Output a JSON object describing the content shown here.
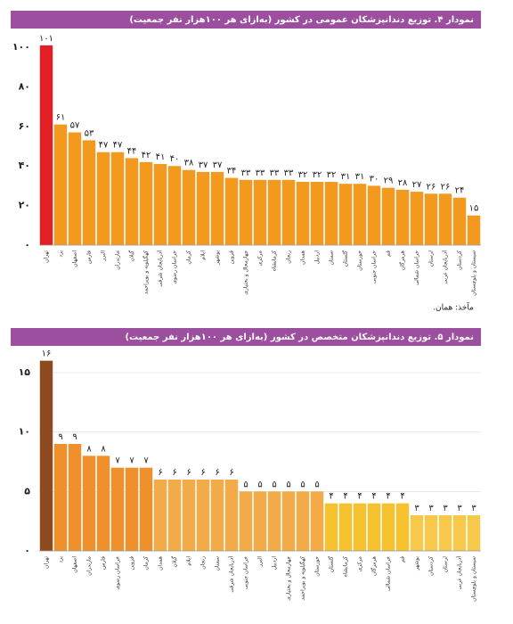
{
  "chart_data": [
    {
      "type": "bar",
      "title": "نمودار ۴. توزیع دندانپزشکان عمومی در کشور (به‌ازای هر ۱۰۰هزار نفر جمعیت)",
      "categories": [
        "تهران",
        "یزد",
        "اصفهان",
        "فارس",
        "البرز",
        "مازندران",
        "گیلان",
        "کهگیلویه و بویراحمد",
        "آذربایجان شرقی",
        "خراسان رضوی",
        "کرمان",
        "ایلام",
        "بوشهر",
        "قزوین",
        "چهارمحال و بختیاری",
        "مرکزی",
        "کرمانشاه",
        "زنجان",
        "همدان",
        "اردبیل",
        "سمنان",
        "گلستان",
        "خوزستان",
        "خراسان جنوبی",
        "قم",
        "هرمزگان",
        "خراسان شمالی",
        "لرستان",
        "آذربایجان غربی",
        "کردستان",
        "سیستان و بلوچستان"
      ],
      "values": [
        101,
        61,
        57,
        53,
        47,
        47,
        44,
        42,
        41,
        40,
        38,
        37,
        37,
        34,
        33,
        33,
        33,
        33,
        32,
        32,
        32,
        31,
        31,
        30,
        29,
        28,
        27,
        26,
        26,
        24,
        15
      ],
      "value_labels": [
        "۱۰۱",
        "۶۱",
        "۵۷",
        "۵۳",
        "۴۷",
        "۴۷",
        "۴۴",
        "۴۲",
        "۴۱",
        "۴۰",
        "۳۸",
        "۳۷",
        "۳۷",
        "۳۴",
        "۳۳",
        "۳۳",
        "۳۳",
        "۳۳",
        "۳۲",
        "۳۲",
        "۳۲",
        "۳۱",
        "۳۱",
        "۳۰",
        "۲۹",
        "۲۸",
        "۲۷",
        "۲۶",
        "۲۶",
        "۲۴",
        "۱۵"
      ],
      "colors": [
        "#e31e24",
        "#f39a1e",
        "#f39a1e",
        "#f39a1e",
        "#f39a1e",
        "#f39a1e",
        "#f39a1e",
        "#f39a1e",
        "#f39a1e",
        "#f39a1e",
        "#f39a1e",
        "#f39a1e",
        "#f39a1e",
        "#f39a1e",
        "#f39a1e",
        "#f39a1e",
        "#f39a1e",
        "#f39a1e",
        "#f39a1e",
        "#f39a1e",
        "#f39a1e",
        "#f39a1e",
        "#f39a1e",
        "#f39a1e",
        "#f39a1e",
        "#f39a1e",
        "#f39a1e",
        "#f39a1e",
        "#f39a1e",
        "#f39a1e",
        "#f39a1e"
      ],
      "ylim": [
        0,
        105
      ],
      "yticks": [
        {
          "value": 0,
          "label": "۰"
        },
        {
          "value": 20,
          "label": "۲۰"
        },
        {
          "value": 40,
          "label": "۴۰"
        },
        {
          "value": 60,
          "label": "۶۰"
        },
        {
          "value": 80,
          "label": "۸۰"
        },
        {
          "value": 100,
          "label": "۱۰۰"
        }
      ],
      "grid": false,
      "source": "مآخذ: همان."
    },
    {
      "type": "bar",
      "title": "نمودار ۵. توزیع دندانپزشکان متخصص در کشور (به‌ازای هر ۱۰۰هزار نفر جمعیت)",
      "categories": [
        "تهران",
        "یزد",
        "اصفهان",
        "مازندران",
        "فارس",
        "خراسان رضوی",
        "قزوین",
        "کرمان",
        "همدان",
        "گیلان",
        "ایلام",
        "زنجان",
        "سمنان",
        "آذربایجان شرقی",
        "خراسان جنوبی",
        "البرز",
        "اردبیل",
        "چهارمحال و بختیاری",
        "کهگیلویه و بویراحمد",
        "خوزستان",
        "گلستان",
        "کرمانشاه",
        "مرکزی",
        "هرمزگان",
        "خراسان شمالی",
        "قم",
        "بوشهر",
        "کردستان",
        "لرستان",
        "آذربایجان غربی",
        "سیستان و بلوچستان"
      ],
      "values": [
        16,
        9,
        9,
        8,
        8,
        7,
        7,
        7,
        6,
        6,
        6,
        6,
        6,
        6,
        5,
        5,
        5,
        5,
        5,
        5,
        4,
        4,
        4,
        4,
        4,
        4,
        3,
        3,
        3,
        3,
        3
      ],
      "value_labels": [
        "۱۶",
        "۹",
        "۹",
        "۸",
        "۸",
        "۷",
        "۷",
        "۷",
        "۶",
        "۶",
        "۶",
        "۶",
        "۶",
        "۶",
        "۵",
        "۵",
        "۵",
        "۵",
        "۵",
        "۵",
        "۴",
        "۴",
        "۴",
        "۴",
        "۴",
        "۴",
        "۳",
        "۳",
        "۳",
        "۳",
        "۳"
      ],
      "colors": [
        "#8c4a1e",
        "#f0902a",
        "#f0902a",
        "#f0902a",
        "#f0902a",
        "#f0902a",
        "#f0902a",
        "#f0902a",
        "#f5aa48",
        "#f5aa48",
        "#f5aa48",
        "#f5aa48",
        "#f5aa48",
        "#f5aa48",
        "#f5aa48",
        "#f5aa48",
        "#f5aa48",
        "#f5aa48",
        "#f5aa48",
        "#f5aa48",
        "#f8c12e",
        "#f8c12e",
        "#f8c12e",
        "#f8c12e",
        "#f8c12e",
        "#f8c12e",
        "#f7c84a",
        "#f7c84a",
        "#f7c84a",
        "#f7c84a",
        "#f7c84a"
      ],
      "ylim": [
        0,
        16.5
      ],
      "yticks": [
        {
          "value": 0,
          "label": "۰"
        },
        {
          "value": 5,
          "label": "۵"
        },
        {
          "value": 10,
          "label": "۱۰"
        },
        {
          "value": 15,
          "label": "۱۵"
        }
      ],
      "grid": true
    }
  ]
}
